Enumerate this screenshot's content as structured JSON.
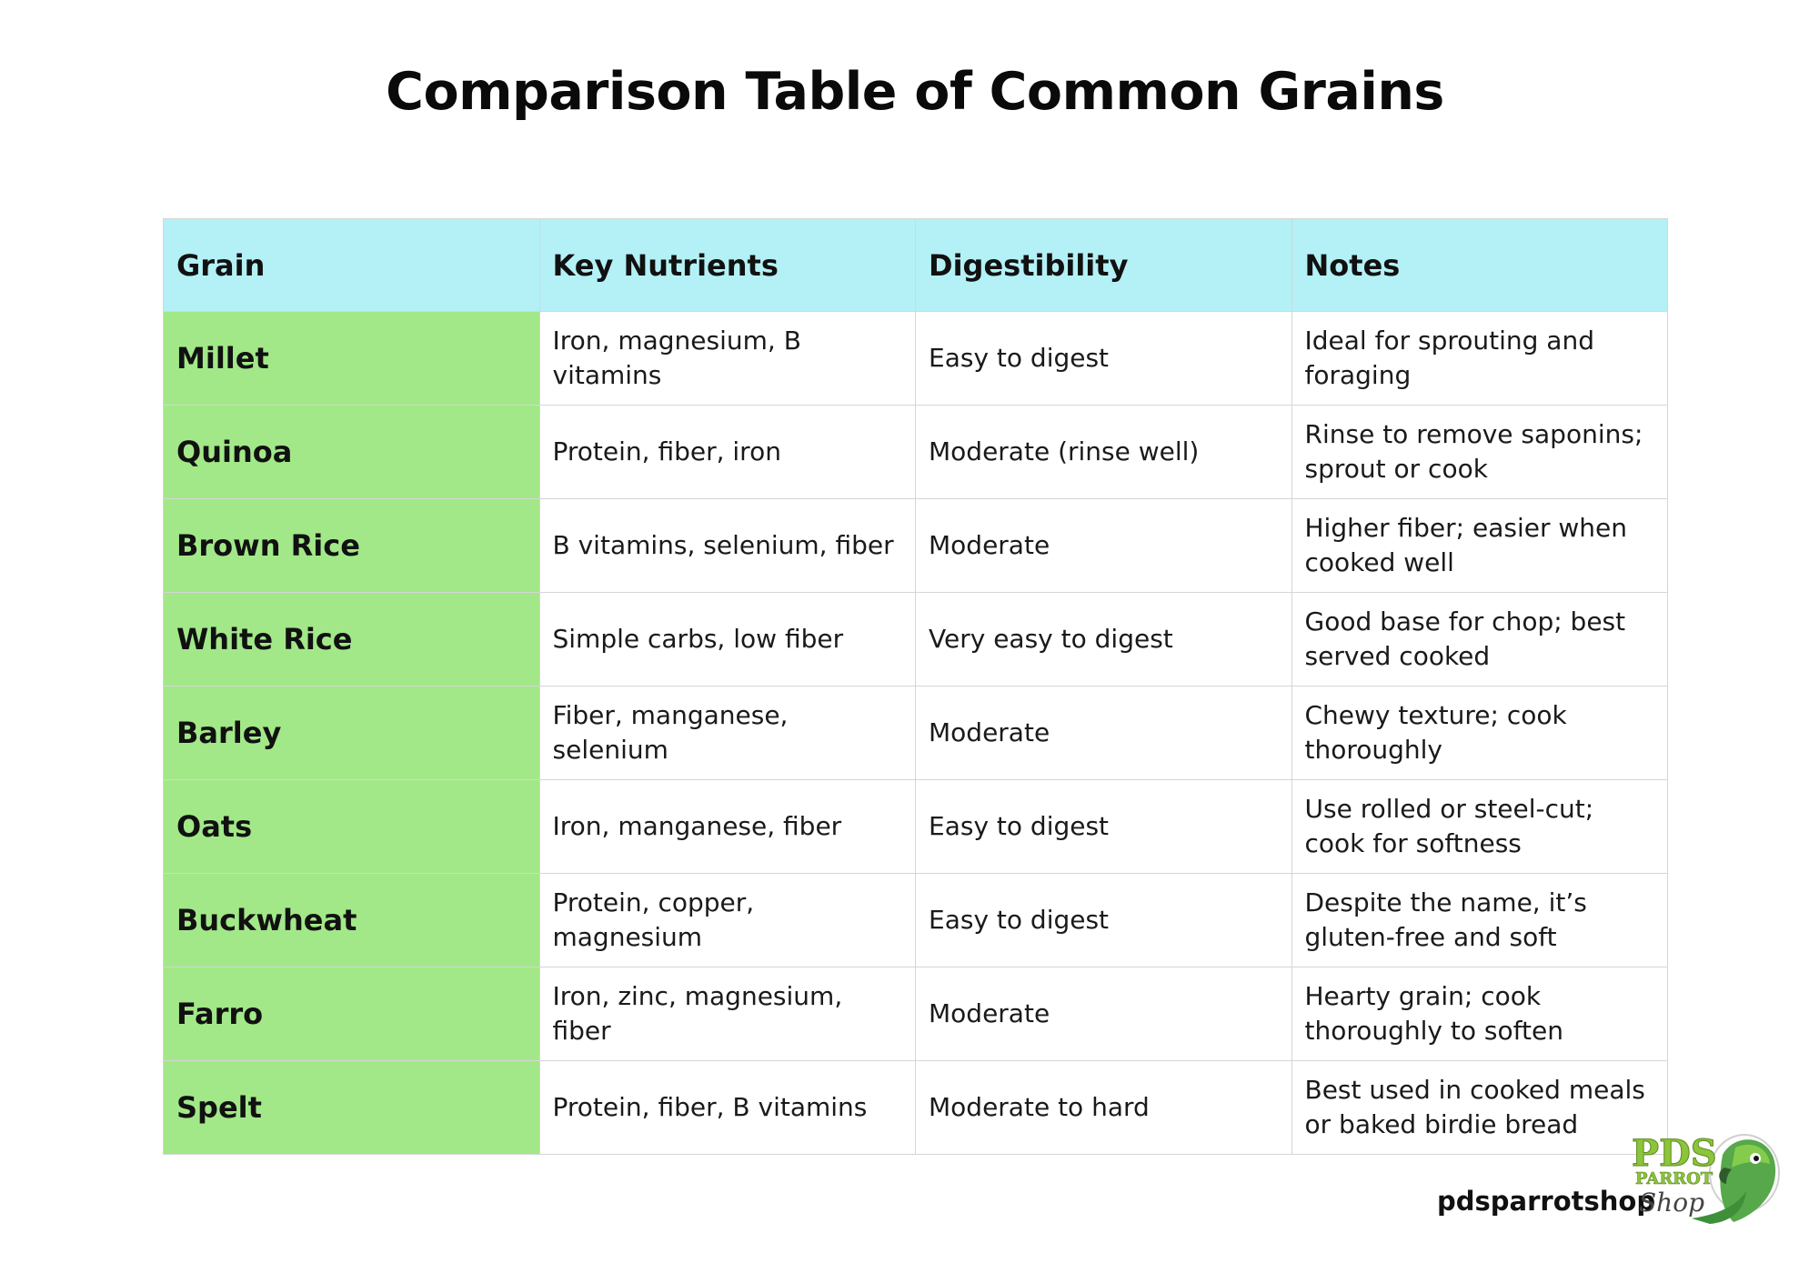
{
  "title": "Comparison Table of Common Grains",
  "table": {
    "headers": [
      "Grain",
      "Key Nutrients",
      "Digestibility",
      "Notes"
    ],
    "rows": [
      {
        "grain": "Millet",
        "nutrients": "Iron, magnesium, B vitamins",
        "digestibility": "Easy to digest",
        "notes": "Ideal for sprouting and foraging"
      },
      {
        "grain": "Quinoa",
        "nutrients": "Protein, fiber, iron",
        "digestibility": "Moderate (rinse well)",
        "notes": "Rinse to remove saponins; sprout or cook"
      },
      {
        "grain": "Brown Rice",
        "nutrients": "B vitamins, selenium, fiber",
        "digestibility": "Moderate",
        "notes": "Higher fiber; easier when cooked well"
      },
      {
        "grain": "White Rice",
        "nutrients": "Simple carbs, low fiber",
        "digestibility": "Very easy to digest",
        "notes": "Good base for chop; best served cooked"
      },
      {
        "grain": "Barley",
        "nutrients": "Fiber, manganese, selenium",
        "digestibility": "Moderate",
        "notes": "Chewy texture; cook thoroughly"
      },
      {
        "grain": "Oats",
        "nutrients": "Iron, manganese, fiber",
        "digestibility": "Easy to digest",
        "notes": "Use rolled or steel-cut; cook for softness"
      },
      {
        "grain": "Buckwheat",
        "nutrients": "Protein, copper, magnesium",
        "digestibility": "Easy to digest",
        "notes": "Despite the name, it’s gluten-free and soft"
      },
      {
        "grain": "Farro",
        "nutrients": "Iron, zinc, magnesium, fiber",
        "digestibility": "Moderate",
        "notes": "Hearty grain; cook thoroughly to soften"
      },
      {
        "grain": "Spelt",
        "nutrients": "Protein, fiber, B vitamins",
        "digestibility": "Moderate to hard",
        "notes": "Best used in cooked meals or baked birdie bread"
      }
    ]
  },
  "colors": {
    "header_bg": "#b3f1f6",
    "grain_col_bg": "#a2e888",
    "border": "#d6d6d6"
  },
  "brand": {
    "text": "pdsparrotshop",
    "logo_text": "PDS PARROT Shop",
    "logo_icon": "parrot-logo-icon"
  }
}
